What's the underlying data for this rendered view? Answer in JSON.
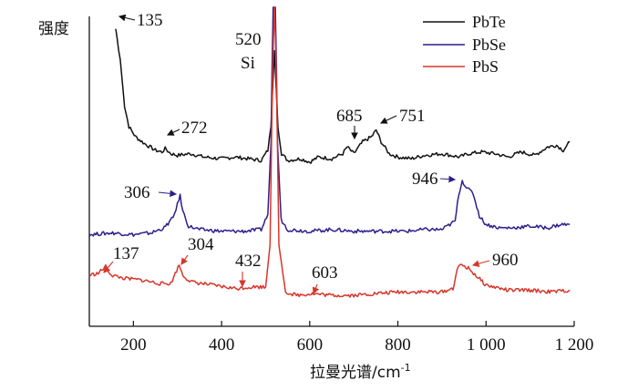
{
  "chart_data": {
    "type": "line",
    "xlabel": "拉曼光谱/cm⁻¹",
    "ylabel": "强度",
    "xlim": [
      100,
      1200
    ],
    "x_ticks": [
      {
        "value": 200,
        "label": "200"
      },
      {
        "value": 400,
        "label": "400"
      },
      {
        "value": 600,
        "label": "600"
      },
      {
        "value": 800,
        "label": "800"
      },
      {
        "value": 1000,
        "label": "1 000"
      },
      {
        "value": 1200,
        "label": "1 200"
      }
    ],
    "y_ticks": false,
    "grid": false,
    "legend_position": "top-right",
    "series": [
      {
        "name": "PbTe",
        "color": "#111111",
        "points": [
          [
            160,
            98
          ],
          [
            170,
            80
          ],
          [
            180,
            52
          ],
          [
            190,
            40
          ],
          [
            205,
            34
          ],
          [
            225,
            30
          ],
          [
            250,
            26
          ],
          [
            265,
            25
          ],
          [
            272,
            27
          ],
          [
            285,
            24
          ],
          [
            300,
            23
          ],
          [
            330,
            24
          ],
          [
            360,
            22
          ],
          [
            400,
            21
          ],
          [
            430,
            22
          ],
          [
            460,
            21
          ],
          [
            490,
            20
          ],
          [
            505,
            26
          ],
          [
            512,
            40
          ],
          [
            520,
            85
          ],
          [
            528,
            40
          ],
          [
            536,
            24
          ],
          [
            550,
            20
          ],
          [
            580,
            21
          ],
          [
            600,
            19
          ],
          [
            620,
            22
          ],
          [
            650,
            21
          ],
          [
            675,
            24
          ],
          [
            685,
            28
          ],
          [
            700,
            24
          ],
          [
            720,
            31
          ],
          [
            740,
            34
          ],
          [
            751,
            38
          ],
          [
            762,
            31
          ],
          [
            780,
            24
          ],
          [
            800,
            22
          ],
          [
            830,
            21
          ],
          [
            860,
            23
          ],
          [
            900,
            24
          ],
          [
            940,
            22
          ],
          [
            960,
            24
          ],
          [
            990,
            25
          ],
          [
            1020,
            24
          ],
          [
            1050,
            22
          ],
          [
            1080,
            25
          ],
          [
            1110,
            23
          ],
          [
            1140,
            28
          ],
          [
            1160,
            29
          ],
          [
            1175,
            26
          ],
          [
            1190,
            31
          ]
        ]
      },
      {
        "name": "PbSe",
        "color": "#2b1f8c",
        "points": [
          [
            100,
            -24
          ],
          [
            150,
            -23
          ],
          [
            200,
            -24
          ],
          [
            240,
            -23
          ],
          [
            270,
            -20
          ],
          [
            290,
            -14
          ],
          [
            300,
            -6
          ],
          [
            306,
            -1
          ],
          [
            312,
            -10
          ],
          [
            325,
            -19
          ],
          [
            350,
            -21
          ],
          [
            400,
            -22
          ],
          [
            450,
            -22
          ],
          [
            490,
            -21
          ],
          [
            505,
            -12
          ],
          [
            512,
            30
          ],
          [
            517,
            120
          ],
          [
            522,
            120
          ],
          [
            527,
            30
          ],
          [
            535,
            -15
          ],
          [
            550,
            -21
          ],
          [
            600,
            -22
          ],
          [
            650,
            -21
          ],
          [
            700,
            -22
          ],
          [
            760,
            -22
          ],
          [
            820,
            -22
          ],
          [
            860,
            -21
          ],
          [
            900,
            -21
          ],
          [
            930,
            -16
          ],
          [
            938,
            0
          ],
          [
            946,
            8
          ],
          [
            958,
            3
          ],
          [
            970,
            1
          ],
          [
            985,
            -13
          ],
          [
            1000,
            -18
          ],
          [
            1030,
            -20
          ],
          [
            1060,
            -20
          ],
          [
            1100,
            -19
          ],
          [
            1140,
            -20
          ],
          [
            1170,
            -18
          ],
          [
            1190,
            -18
          ]
        ]
      },
      {
        "name": "PbS",
        "color": "#d8352a",
        "points": [
          [
            100,
            -48
          ],
          [
            120,
            -47
          ],
          [
            137,
            -43
          ],
          [
            150,
            -48
          ],
          [
            180,
            -50
          ],
          [
            220,
            -51
          ],
          [
            260,
            -53
          ],
          [
            285,
            -53
          ],
          [
            295,
            -47
          ],
          [
            304,
            -42
          ],
          [
            312,
            -48
          ],
          [
            330,
            -52
          ],
          [
            380,
            -54
          ],
          [
            432,
            -56
          ],
          [
            470,
            -55
          ],
          [
            500,
            -55
          ],
          [
            510,
            -30
          ],
          [
            515,
            60
          ],
          [
            520,
            120
          ],
          [
            525,
            60
          ],
          [
            530,
            -30
          ],
          [
            545,
            -58
          ],
          [
            570,
            -60
          ],
          [
            603,
            -59
          ],
          [
            650,
            -60
          ],
          [
            700,
            -60
          ],
          [
            750,
            -59
          ],
          [
            800,
            -58
          ],
          [
            850,
            -58
          ],
          [
            900,
            -58
          ],
          [
            925,
            -56
          ],
          [
            935,
            -44
          ],
          [
            945,
            -42
          ],
          [
            960,
            -44
          ],
          [
            980,
            -49
          ],
          [
            1000,
            -54
          ],
          [
            1050,
            -57
          ],
          [
            1100,
            -57
          ],
          [
            1150,
            -58
          ],
          [
            1190,
            -57
          ]
        ]
      }
    ],
    "annotations": [
      {
        "text": "135",
        "x": 135,
        "series": "PbTe"
      },
      {
        "text": "272",
        "x": 272,
        "series": "PbTe"
      },
      {
        "text": "685",
        "x": 685,
        "series": "PbTe"
      },
      {
        "text": "751",
        "x": 751,
        "series": "PbTe"
      },
      {
        "text": "520",
        "x": 520,
        "series": "Si"
      },
      {
        "text": "Si",
        "x": 520,
        "series": "Si"
      },
      {
        "text": "306",
        "x": 306,
        "series": "PbSe"
      },
      {
        "text": "946",
        "x": 946,
        "series": "PbSe"
      },
      {
        "text": "137",
        "x": 137,
        "series": "PbS"
      },
      {
        "text": "304",
        "x": 304,
        "series": "PbS"
      },
      {
        "text": "432",
        "x": 432,
        "series": "PbS"
      },
      {
        "text": "603",
        "x": 603,
        "series": "PbS"
      },
      {
        "text": "960",
        "x": 960,
        "series": "PbS"
      }
    ]
  }
}
